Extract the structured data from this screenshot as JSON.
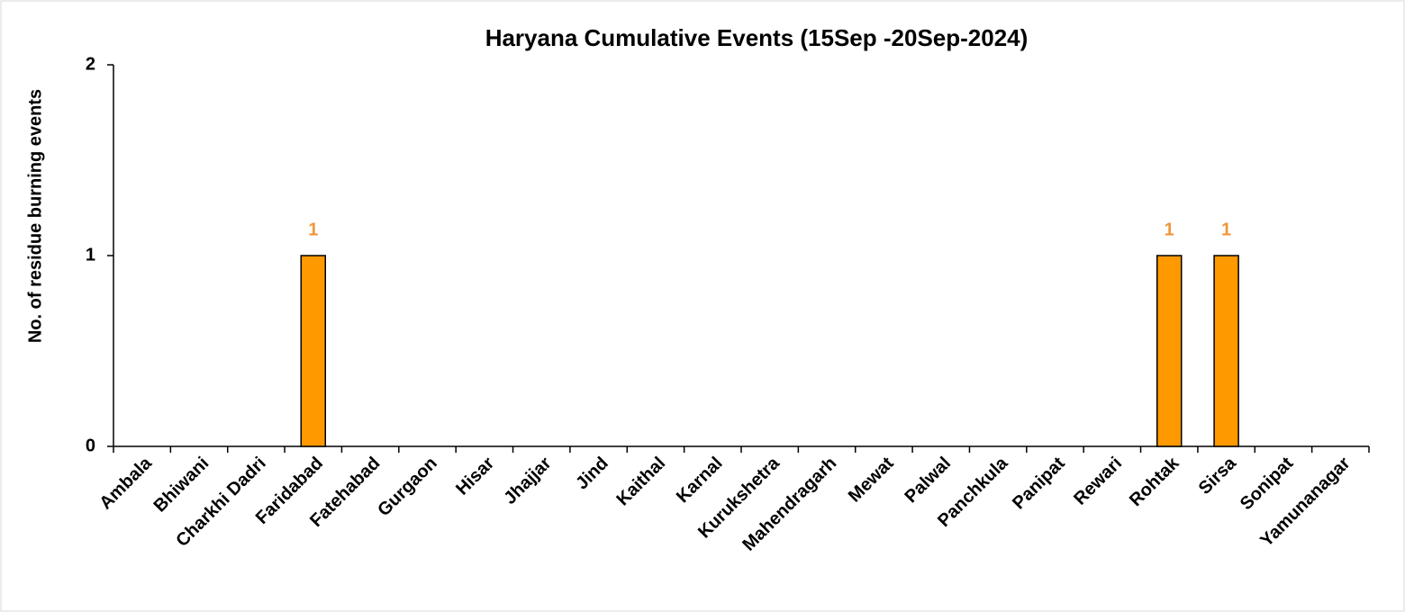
{
  "chart_data": {
    "type": "bar",
    "title": "Haryana Cumulative Events (15Sep -20Sep-2024)",
    "y_label": "No. of residue burning events",
    "categories": [
      "Ambala",
      "Bhiwani",
      "Charkhi Dadri",
      "Faridabad",
      "Fatehabad",
      "Gurgaon",
      "Hisar",
      "Jhajjar",
      "Jind",
      "Kaithal",
      "Karnal",
      "Kurukshetra",
      "Mahendragarh",
      "Mewat",
      "Palwal",
      "Panchkula",
      "Panipat",
      "Rewari",
      "Rohtak",
      "Sirsa",
      "Sonipat",
      "Yamunanagar"
    ],
    "values": [
      0,
      0,
      0,
      1,
      0,
      0,
      0,
      0,
      0,
      0,
      0,
      0,
      0,
      0,
      0,
      0,
      0,
      0,
      1,
      1,
      0,
      0
    ],
    "color": "#ff9900",
    "label_color": "#f0963c",
    "ylim": [
      0,
      2
    ],
    "yticks": [
      0,
      1,
      2
    ],
    "grid": false
  }
}
